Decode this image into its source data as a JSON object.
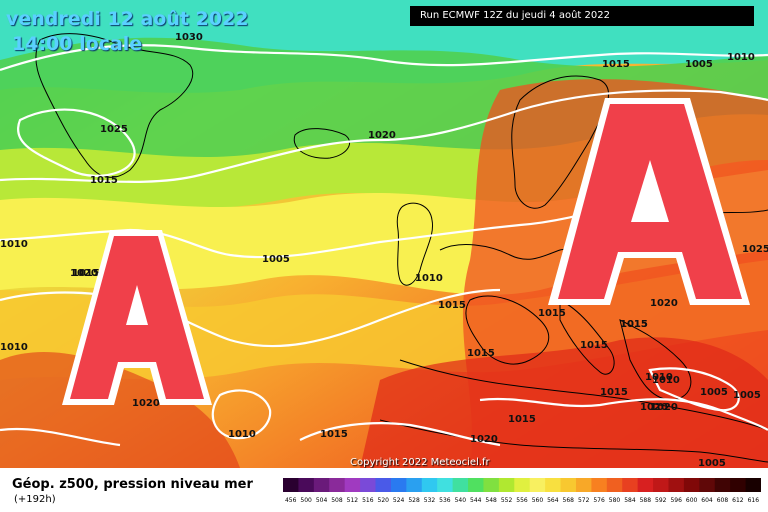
{
  "header": {
    "date_line": "vendredi 12 août 2022",
    "time_line": "14:00 locale",
    "run_info": "Run ECMWF 12Z du jeudi 4 août 2022"
  },
  "map": {
    "pressure_labels": [
      "1030",
      "1025",
      "1020",
      "1015",
      "1010",
      "1005",
      "1015",
      "1010",
      "1005",
      "1025",
      "1020",
      "1010",
      "1015",
      "1015",
      "1020",
      "1015",
      "1010",
      "1015",
      "1015",
      "1020",
      "1010",
      "1015",
      "1010",
      "1020",
      "1015",
      "1015",
      "1020",
      "1010",
      "1005",
      "1005",
      "1020",
      "1005",
      "1015",
      "1015"
    ],
    "anticyclone_symbol": "A",
    "anticyclone_color": "#f0404a",
    "contour_color": "#ffffff",
    "land_border_color": "#000000"
  },
  "footer": {
    "title": "Géop. z500, pression niveau mer",
    "subtitle": "(+192h)",
    "copyright": "Copyright 2022 Meteociel.fr",
    "scale_values": [
      "456",
      "500",
      "504",
      "508",
      "512",
      "516",
      "520",
      "524",
      "528",
      "532",
      "536",
      "540",
      "544",
      "548",
      "552",
      "556",
      "560",
      "564",
      "568",
      "572",
      "576",
      "580",
      "584",
      "588",
      "592",
      "596",
      "600",
      "604",
      "608",
      "612",
      "616"
    ],
    "scale_colors": [
      "#2a0030",
      "#4a0a5a",
      "#6a1a7a",
      "#8a2a9a",
      "#a03ac0",
      "#7a4ad8",
      "#4a5ae8",
      "#2a7af0",
      "#2aa0f0",
      "#30c8f0",
      "#40e0e0",
      "#40e0a0",
      "#50e060",
      "#80e040",
      "#b0e830",
      "#e0f040",
      "#f8f060",
      "#f8e040",
      "#f8c830",
      "#f8a828",
      "#f88020",
      "#f06020",
      "#e84020",
      "#d82020",
      "#c01818",
      "#a01010",
      "#800808",
      "#600808",
      "#400404",
      "#300000",
      "#180000"
    ]
  }
}
